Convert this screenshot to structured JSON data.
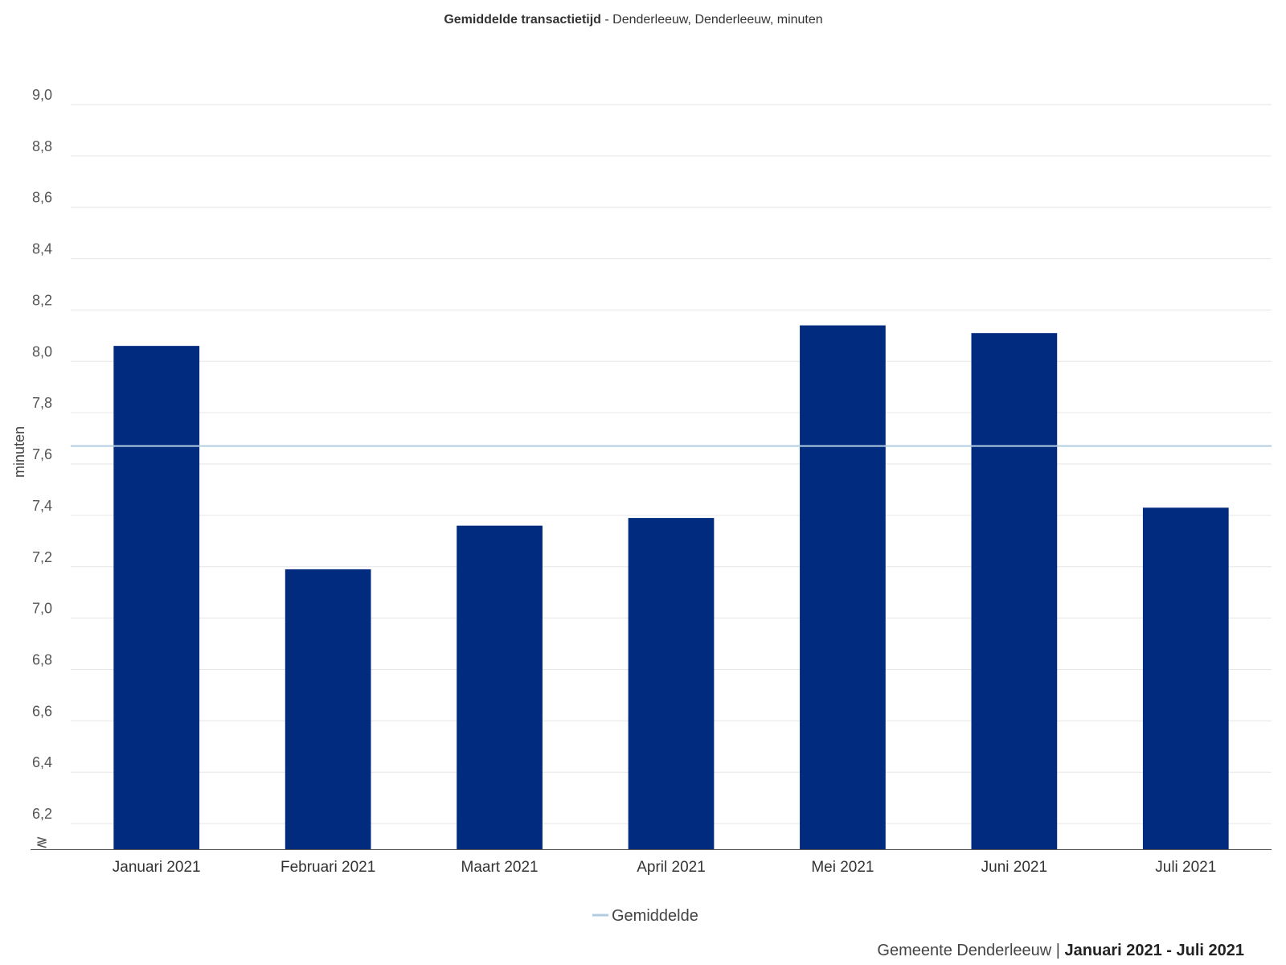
{
  "chart_data": {
    "type": "bar",
    "title": "Gemiddelde transactietijd",
    "subtitle": " - Denderleeuw, Denderleeuw, minuten",
    "ylabel": "minuten",
    "xlabel": "",
    "ylim": [
      6.1,
      9.0
    ],
    "yticks": [
      "6,2",
      "6,4",
      "6,6",
      "6,8",
      "7,0",
      "7,2",
      "7,4",
      "7,6",
      "7,8",
      "8,0",
      "8,2",
      "8,4",
      "8,6",
      "8,8",
      "9,0"
    ],
    "ytick_values": [
      6.2,
      6.4,
      6.6,
      6.8,
      7.0,
      7.2,
      7.4,
      7.6,
      7.8,
      8.0,
      8.2,
      8.4,
      8.6,
      8.8,
      9.0
    ],
    "axis_break_symbol": "≷",
    "categories": [
      "Januari 2021",
      "Februari 2021",
      "Maart 2021",
      "April 2021",
      "Mei 2021",
      "Juni 2021",
      "Juli 2021"
    ],
    "series": [
      {
        "values": [
          8.06,
          7.19,
          7.36,
          7.39,
          8.14,
          8.11,
          7.43
        ],
        "color": "#002b7f"
      }
    ],
    "reference_line": {
      "name": "Gemiddelde",
      "value": 7.67,
      "color": "#b3cde0"
    },
    "grid": true,
    "legend_position": "bottom"
  },
  "footer": {
    "source": "Gemeente Denderleeuw",
    "separator": " | ",
    "period": "Januari 2021 - Juli 2021"
  },
  "colors": {
    "bar": "#002b7f",
    "average_line": "#b3cde0",
    "grid": "#e6e6e6",
    "axis": "#555555"
  }
}
